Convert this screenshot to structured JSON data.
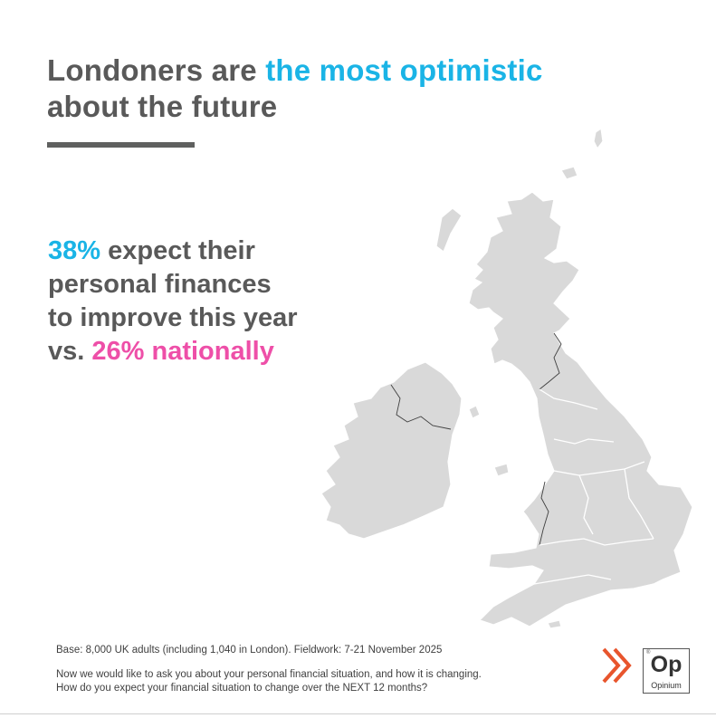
{
  "headline": {
    "part1": "Londoners are ",
    "highlight": "the most optimistic",
    "part2": "about the future"
  },
  "stat": {
    "london_pct": "38%",
    "line1_rest": " expect their",
    "line2": "personal finances",
    "line3": "to improve this year",
    "line4_prefix": "vs. ",
    "national": "26% nationally"
  },
  "footnote": {
    "base": "Base: 8,000 UK adults (including 1,040 in London). Fieldwork: 7-21 November 2025",
    "question_line1": "Now we would like to ask you about your personal financial situation, and how it is changing.",
    "question_line2": "How do you expect your financial situation to change over the NEXT 12 months?"
  },
  "brand": {
    "mark": "Op",
    "name": "Opinium",
    "registered": "®"
  },
  "colors": {
    "accent_blue": "#1ab4e6",
    "accent_pink": "#ee4fa8",
    "text_gray": "#595959",
    "map_gray": "#d9d9d9",
    "brand_orange": "#e8552d"
  }
}
